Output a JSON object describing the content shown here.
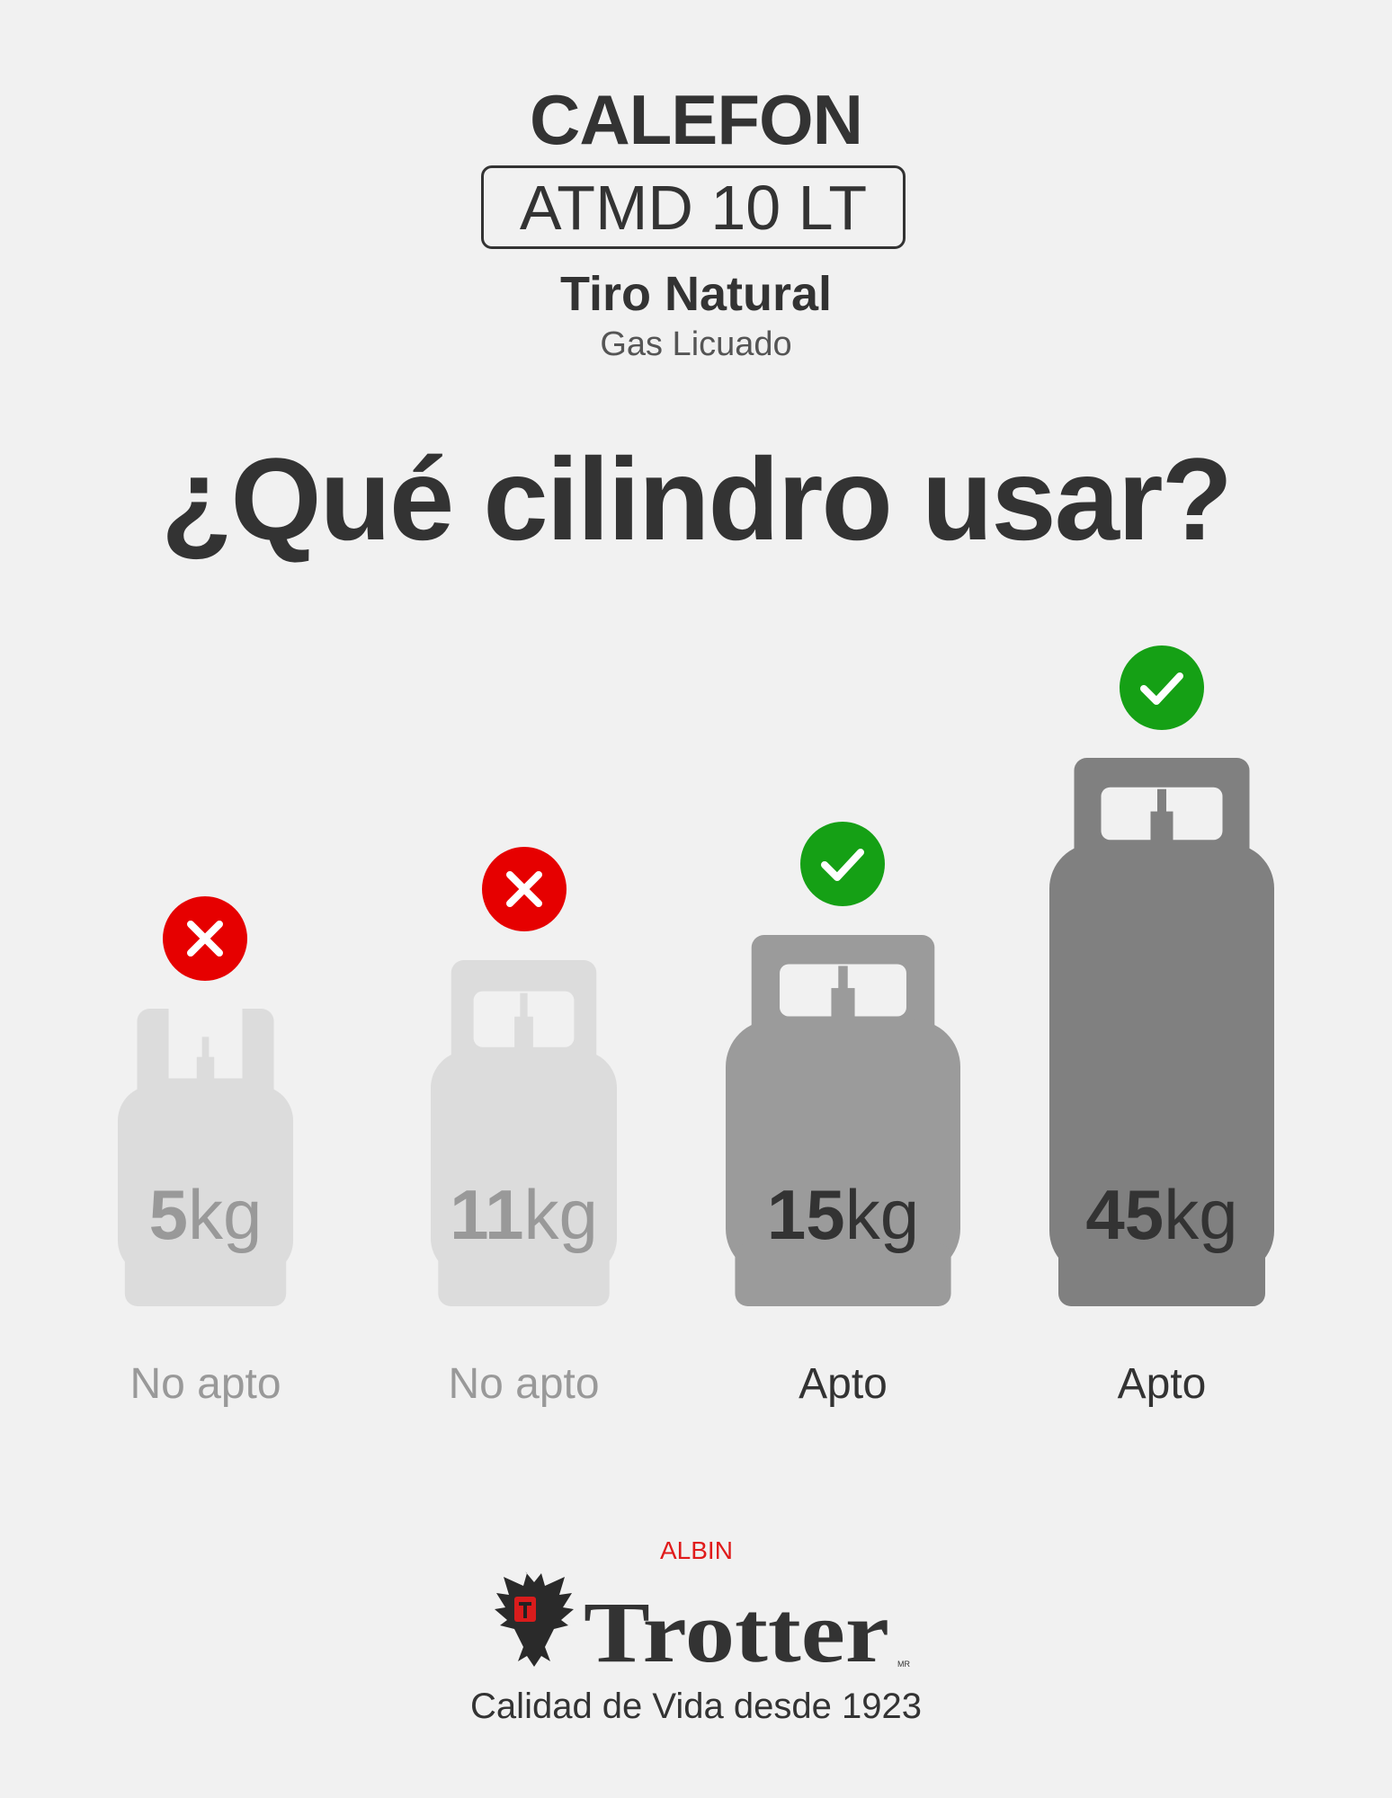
{
  "header": {
    "product": "CALEFON",
    "model": "ATMD 10 LT",
    "draft_type": "Tiro Natural",
    "gas_type": "Gas Licuado"
  },
  "heading": "¿Qué cilindro usar?",
  "colors": {
    "background": "#f1f1f1",
    "ok": "#15a015",
    "no": "#e60000"
  },
  "cylinders": [
    {
      "number": "5",
      "unit": "kg",
      "status": "No apto",
      "suitable": false,
      "icon": "x-circle-icon",
      "fill": "#dcdcdc",
      "text_color": "#999999"
    },
    {
      "number": "11",
      "unit": "kg",
      "status": "No apto",
      "suitable": false,
      "icon": "x-circle-icon",
      "fill": "#dcdcdc",
      "text_color": "#999999"
    },
    {
      "number": "15",
      "unit": "kg",
      "status": "Apto",
      "suitable": true,
      "icon": "check-circle-icon",
      "fill": "#9b9b9b",
      "text_color": "#333333"
    },
    {
      "number": "45",
      "unit": "kg",
      "status": "Apto",
      "suitable": true,
      "icon": "check-circle-icon",
      "fill": "#808080",
      "text_color": "#333333"
    }
  ],
  "brand": {
    "logo_text_top": "ALBIN",
    "logo_text_main": "Trotter",
    "logo_mark": "MR",
    "tagline": "Calidad de Vida desde 1923"
  }
}
